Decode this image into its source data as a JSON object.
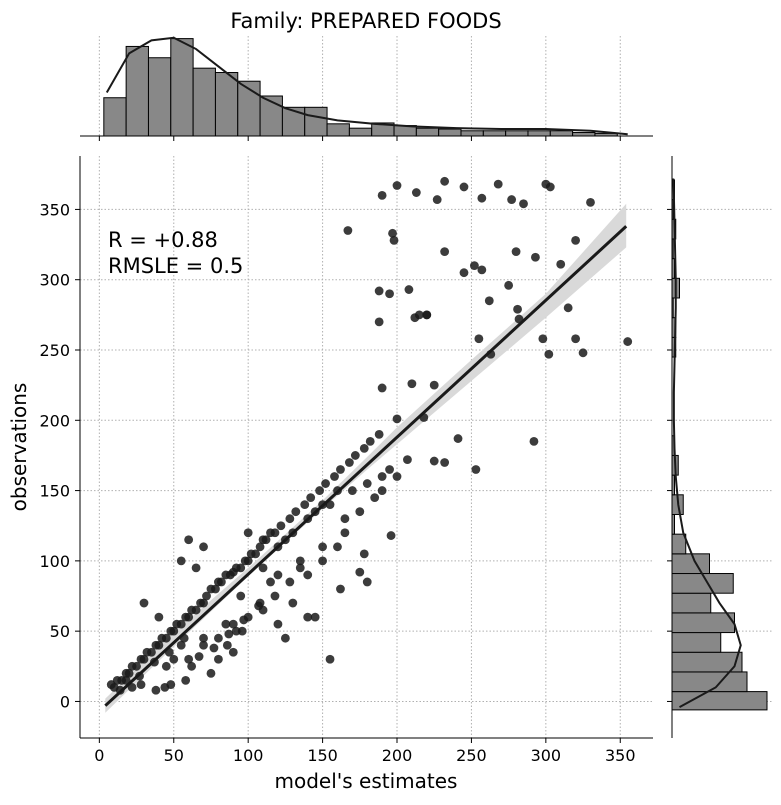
{
  "chart_data": {
    "type": "scatter",
    "title": "Family: PREPARED FOODS",
    "xlabel": "model's estimates",
    "ylabel": "observations",
    "xlim": [
      -13,
      372
    ],
    "ylim": [
      -26,
      388
    ],
    "xticks": [
      0,
      50,
      100,
      150,
      200,
      250,
      300,
      350
    ],
    "yticks": [
      0,
      50,
      100,
      150,
      200,
      250,
      300,
      350
    ],
    "grid": true,
    "annotation": [
      "R = +0.88",
      "RMSLE =  0.5"
    ],
    "regression_line": {
      "x": [
        4,
        354
      ],
      "y": [
        -3,
        338
      ]
    },
    "confidence_band": {
      "x": [
        4,
        50,
        100,
        150,
        180,
        200,
        250,
        300,
        354
      ],
      "lower": [
        -8,
        39,
        89,
        137,
        165,
        183,
        228,
        273,
        323
      ],
      "upper": [
        2,
        49,
        95,
        143,
        174,
        195,
        243,
        290,
        354
      ]
    },
    "points": {
      "x": [
        190,
        200,
        213,
        227,
        232,
        245,
        257,
        268,
        277,
        285,
        300,
        303,
        330,
        197,
        198,
        167,
        232,
        252,
        257,
        280,
        293,
        310,
        320,
        188,
        195,
        208,
        212,
        215,
        220,
        245,
        255,
        262,
        275,
        281,
        282,
        298,
        302,
        315,
        320,
        325,
        355,
        188,
        220,
        190,
        210,
        263,
        225,
        292,
        253,
        200,
        218,
        207,
        241,
        225,
        190,
        232,
        155,
        160,
        175,
        185,
        200,
        195,
        190,
        180,
        170,
        150,
        145,
        140,
        130,
        125,
        120,
        115,
        110,
        105,
        100,
        95,
        90,
        85,
        80,
        75,
        70,
        65,
        60,
        55,
        50,
        45,
        40,
        35,
        30,
        25,
        20,
        15,
        10,
        8,
        12,
        18,
        22,
        28,
        32,
        38,
        42,
        48,
        52,
        58,
        62,
        68,
        72,
        78,
        82,
        88,
        92,
        98,
        102,
        108,
        112,
        118,
        122,
        128,
        132,
        138,
        142,
        148,
        152,
        158,
        162,
        168,
        172,
        178,
        182,
        188,
        160,
        165,
        140,
        150,
        135,
        128,
        108,
        118,
        92,
        145,
        162,
        175,
        180,
        196,
        155,
        178,
        90,
        80,
        75,
        62,
        58,
        48,
        44,
        38,
        28,
        22,
        18,
        14,
        60,
        55,
        65,
        70,
        40,
        30,
        50,
        45,
        55,
        70,
        85,
        95,
        110,
        120,
        135,
        150,
        165,
        100,
        115,
        130,
        140,
        60,
        70,
        80,
        90,
        100,
        110,
        120,
        125,
        86,
        96,
        57,
        47,
        37,
        27,
        67,
        77,
        87,
        97,
        107
      ],
      "y": [
        360,
        367,
        362,
        357,
        370,
        366,
        358,
        368,
        357,
        354,
        368,
        366,
        355,
        333,
        328,
        335,
        320,
        310,
        307,
        320,
        316,
        311,
        328,
        292,
        290,
        293,
        273,
        275,
        275,
        305,
        258,
        285,
        296,
        279,
        272,
        258,
        247,
        280,
        258,
        248,
        256,
        270,
        275,
        223,
        226,
        247,
        225,
        185,
        165,
        201,
        202,
        172,
        187,
        171,
        160,
        170,
        140,
        150,
        135,
        145,
        160,
        165,
        150,
        155,
        150,
        140,
        135,
        130,
        120,
        115,
        110,
        120,
        115,
        105,
        100,
        95,
        92,
        90,
        85,
        80,
        70,
        65,
        60,
        55,
        50,
        45,
        40,
        35,
        30,
        25,
        20,
        15,
        10,
        12,
        15,
        20,
        25,
        30,
        35,
        40,
        45,
        50,
        55,
        60,
        65,
        70,
        75,
        80,
        85,
        90,
        95,
        100,
        105,
        110,
        115,
        120,
        125,
        130,
        135,
        140,
        145,
        150,
        155,
        160,
        165,
        170,
        175,
        180,
        185,
        190,
        110,
        120,
        90,
        100,
        95,
        85,
        70,
        75,
        50,
        60,
        80,
        92,
        85,
        118,
        30,
        105,
        35,
        30,
        20,
        25,
        15,
        12,
        10,
        8,
        12,
        10,
        15,
        8,
        115,
        100,
        95,
        110,
        60,
        70,
        30,
        25,
        40,
        45,
        55,
        75,
        95,
        90,
        100,
        110,
        130,
        120,
        85,
        70,
        60,
        30,
        40,
        45,
        55,
        60,
        65,
        55,
        45,
        40,
        50,
        45,
        35,
        28,
        18,
        32,
        38,
        48,
        58,
        68
      ]
    },
    "top_hist": {
      "x_edges": [
        3,
        18,
        33,
        48,
        63,
        78,
        93,
        108,
        123,
        138,
        153,
        168,
        183,
        198,
        213,
        228,
        243,
        258,
        273,
        288,
        303,
        318,
        333,
        348
      ],
      "counts": [
        44,
        103,
        90,
        112,
        78,
        73,
        63,
        46,
        33,
        33,
        14,
        9,
        15,
        12,
        9,
        8,
        6,
        6,
        6,
        6,
        6,
        4,
        3,
        1
      ],
      "kde": [
        [
          5,
          50
        ],
        [
          20,
          95
        ],
        [
          35,
          110
        ],
        [
          50,
          113
        ],
        [
          65,
          100
        ],
        [
          80,
          80
        ],
        [
          95,
          60
        ],
        [
          110,
          44
        ],
        [
          125,
          32
        ],
        [
          140,
          24
        ],
        [
          160,
          18
        ],
        [
          185,
          14
        ],
        [
          210,
          11
        ],
        [
          240,
          9
        ],
        [
          270,
          8
        ],
        [
          300,
          8
        ],
        [
          330,
          6
        ],
        [
          355,
          2
        ]
      ]
    },
    "right_hist": {
      "y_edges": [
        -6,
        7,
        21,
        35,
        49,
        63,
        77,
        91,
        105,
        119,
        133,
        147,
        161,
        175,
        189,
        203,
        217,
        231,
        245,
        259,
        273,
        287,
        301,
        315,
        329,
        343,
        357,
        371
      ],
      "counts": [
        76,
        60,
        56,
        39,
        50,
        31,
        49,
        30,
        11,
        2,
        9,
        2,
        5,
        2,
        0,
        0,
        0,
        0,
        3,
        3,
        1,
        6,
        2,
        1,
        3,
        1,
        2,
        4
      ],
      "kde": [
        [
          -4,
          6
        ],
        [
          10,
          35
        ],
        [
          25,
          50
        ],
        [
          40,
          55
        ],
        [
          55,
          50
        ],
        [
          70,
          38
        ],
        [
          85,
          28
        ],
        [
          100,
          18
        ],
        [
          120,
          9
        ],
        [
          140,
          5
        ],
        [
          160,
          3
        ],
        [
          180,
          2
        ],
        [
          200,
          1.5
        ],
        [
          220,
          1.5
        ],
        [
          240,
          2
        ],
        [
          260,
          2.5
        ],
        [
          280,
          3
        ],
        [
          300,
          3
        ],
        [
          320,
          2.5
        ],
        [
          340,
          2
        ],
        [
          360,
          1.5
        ],
        [
          372,
          1
        ]
      ]
    }
  }
}
